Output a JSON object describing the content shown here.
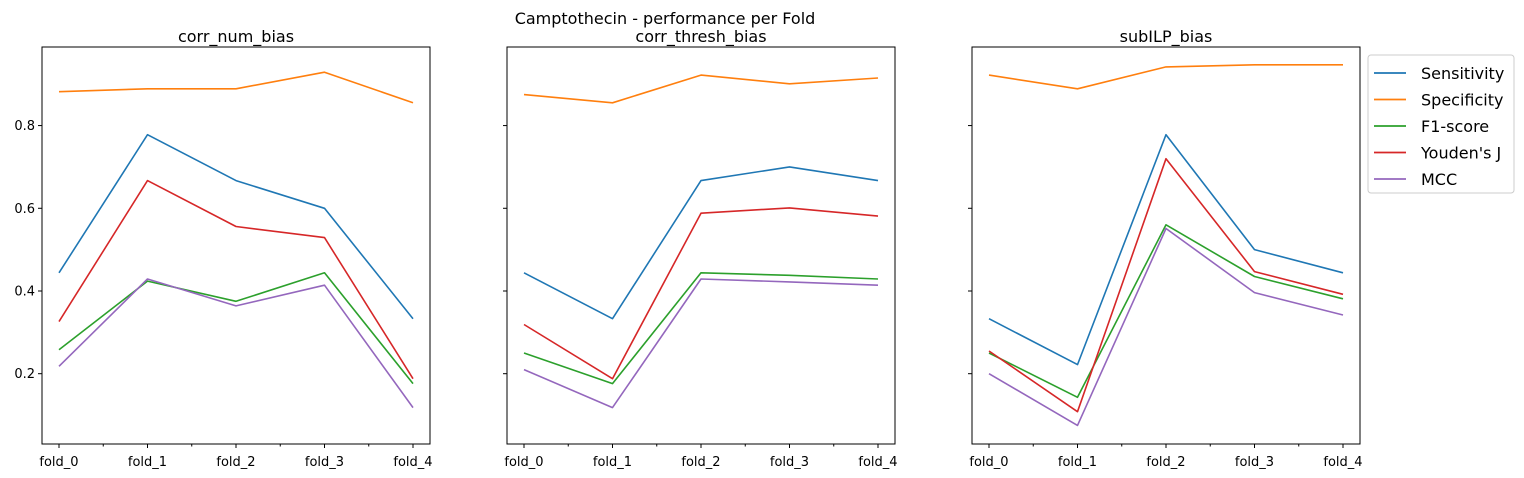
{
  "chart_data": {
    "type": "line",
    "title": "Camptothecin - performance per Fold",
    "categories": [
      "fold_0",
      "fold_1",
      "fold_2",
      "fold_3",
      "fold_4"
    ],
    "ylim": [
      0.03,
      0.99
    ],
    "yticks": [
      0.2,
      0.4,
      0.6,
      0.8
    ],
    "shared_y": true,
    "grid": false,
    "legend_position": "outside right of last panel, top",
    "series_colors": {
      "Sensitivity": "#1f77b4",
      "Specificity": "#ff7f0e",
      "F1-score": "#2ca02c",
      "Youden's J": "#d62728",
      "MCC": "#9467bd"
    },
    "panels": [
      {
        "title": "corr_num_bias",
        "series": [
          {
            "name": "Sensitivity",
            "values": [
              0.444,
              0.778,
              0.667,
              0.6,
              0.333
            ]
          },
          {
            "name": "Specificity",
            "values": [
              0.882,
              0.889,
              0.889,
              0.929,
              0.855
            ]
          },
          {
            "name": "F1-score",
            "values": [
              0.258,
              0.424,
              0.375,
              0.444,
              0.176
            ]
          },
          {
            "name": "Youden's J",
            "values": [
              0.326,
              0.667,
              0.556,
              0.529,
              0.188
            ]
          },
          {
            "name": "MCC",
            "values": [
              0.218,
              0.429,
              0.364,
              0.414,
              0.118
            ]
          }
        ]
      },
      {
        "title": "corr_thresh_bias",
        "series": [
          {
            "name": "Sensitivity",
            "values": [
              0.444,
              0.333,
              0.667,
              0.7,
              0.667
            ]
          },
          {
            "name": "Specificity",
            "values": [
              0.875,
              0.855,
              0.922,
              0.901,
              0.915
            ]
          },
          {
            "name": "F1-score",
            "values": [
              0.25,
              0.176,
              0.444,
              0.438,
              0.429
            ]
          },
          {
            "name": "Youden's J",
            "values": [
              0.319,
              0.188,
              0.588,
              0.601,
              0.581
            ]
          },
          {
            "name": "MCC",
            "values": [
              0.21,
              0.118,
              0.429,
              0.422,
              0.414
            ]
          }
        ]
      },
      {
        "title": "subILP_bias",
        "series": [
          {
            "name": "Sensitivity",
            "values": [
              0.333,
              0.222,
              0.778,
              0.5,
              0.444
            ]
          },
          {
            "name": "Specificity",
            "values": [
              0.922,
              0.889,
              0.942,
              0.947,
              0.947
            ]
          },
          {
            "name": "F1-score",
            "values": [
              0.25,
              0.143,
              0.56,
              0.435,
              0.381
            ]
          },
          {
            "name": "Youden's J",
            "values": [
              0.255,
              0.108,
              0.72,
              0.447,
              0.392
            ]
          },
          {
            "name": "MCC",
            "values": [
              0.2,
              0.075,
              0.551,
              0.396,
              0.342
            ]
          }
        ]
      }
    ]
  }
}
